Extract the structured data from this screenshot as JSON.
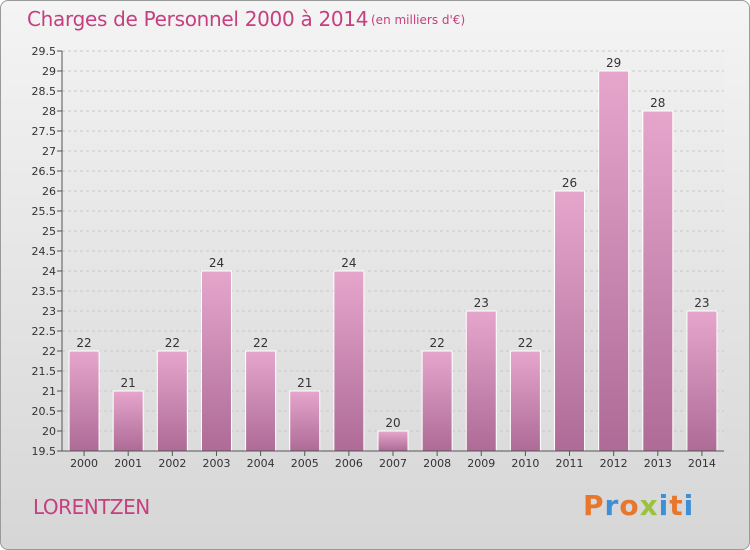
{
  "header": {
    "title": "Charges de Personnel 2000 à 2014",
    "subtitle": "(en milliers d'€)"
  },
  "footer": {
    "town": "LORENTZEN",
    "logo": "Proxiti",
    "logo_colors": [
      "#e8772e",
      "#3d8fd6",
      "#e8772e",
      "#9bc23c",
      "#3d8fd6",
      "#e8772e",
      "#3d8fd6"
    ]
  },
  "colors": {
    "accent": "#c4407e",
    "bar_top": "#e6a6cc",
    "bar_bottom": "#b06d98",
    "axis": "#555555"
  },
  "chart_data": {
    "type": "bar",
    "title": "Charges de Personnel 2000 à 2014",
    "subtitle": "(en milliers d'€)",
    "categories": [
      "2000",
      "2001",
      "2002",
      "2003",
      "2004",
      "2005",
      "2006",
      "2007",
      "2008",
      "2009",
      "2010",
      "2011",
      "2012",
      "2013",
      "2014"
    ],
    "values": [
      22,
      21,
      22,
      24,
      22,
      21,
      24,
      20,
      22,
      23,
      22,
      26,
      29,
      28,
      23
    ],
    "ylim": [
      19.5,
      29.5
    ],
    "yticks": [
      "19.5",
      "20",
      "20.5",
      "21",
      "21.5",
      "22",
      "22.5",
      "23",
      "23.5",
      "24",
      "24.5",
      "25",
      "25.5",
      "26",
      "26.5",
      "27",
      "27.5",
      "28",
      "28.5",
      "29",
      "29.5"
    ],
    "grid": true,
    "legend": "none"
  }
}
